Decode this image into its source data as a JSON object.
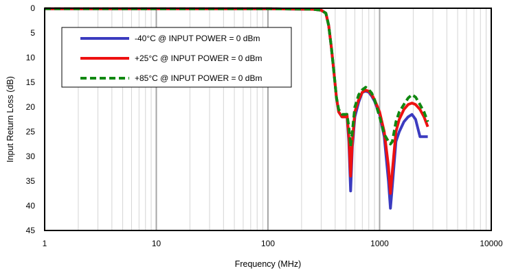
{
  "chart_data": {
    "type": "line",
    "xlabel": "Frequency (MHz)",
    "ylabel": "Input Return  Loss (dB)",
    "x_scale": "log",
    "xlim": [
      1,
      10000
    ],
    "ylim": [
      0,
      45
    ],
    "y_inverted": true,
    "x_ticks": [
      1,
      10,
      100,
      1000,
      10000
    ],
    "x_tick_labels": [
      "1",
      "10",
      "100",
      "1000",
      "10000"
    ],
    "y_ticks": [
      0,
      5,
      10,
      15,
      20,
      25,
      30,
      35,
      40,
      45
    ],
    "y_tick_labels": [
      "0",
      "5",
      "10",
      "15",
      "20",
      "25",
      "30",
      "35",
      "40",
      "45"
    ],
    "grid": true,
    "legend_position": "top-left",
    "series": [
      {
        "name": "-40°C @ INPUT POWER = 0 dBm",
        "color": "#3b3bbf",
        "dash": "solid",
        "points": [
          [
            1,
            0.1
          ],
          [
            10,
            0.1
          ],
          [
            100,
            0.1
          ],
          [
            250,
            0.2
          ],
          [
            300,
            0.4
          ],
          [
            330,
            1.0
          ],
          [
            350,
            3.5
          ],
          [
            370,
            8
          ],
          [
            390,
            13
          ],
          [
            410,
            18
          ],
          [
            430,
            21
          ],
          [
            460,
            22
          ],
          [
            490,
            22
          ],
          [
            510,
            21.5
          ],
          [
            530,
            27
          ],
          [
            550,
            37
          ],
          [
            570,
            28
          ],
          [
            600,
            22
          ],
          [
            650,
            19
          ],
          [
            700,
            17
          ],
          [
            750,
            16.8
          ],
          [
            800,
            17
          ],
          [
            850,
            17.8
          ],
          [
            900,
            18.8
          ],
          [
            1000,
            21.5
          ],
          [
            1100,
            26
          ],
          [
            1200,
            35
          ],
          [
            1250,
            40.5
          ],
          [
            1300,
            36
          ],
          [
            1400,
            27
          ],
          [
            1500,
            25
          ],
          [
            1650,
            23
          ],
          [
            1800,
            22
          ],
          [
            1950,
            21.5
          ],
          [
            2100,
            22.5
          ],
          [
            2300,
            26
          ],
          [
            2500,
            26
          ],
          [
            2700,
            26
          ]
        ]
      },
      {
        "name": "+25°C @ INPUT POWER = 0 dBm",
        "color": "#ee1111",
        "dash": "solid",
        "points": [
          [
            1,
            0.1
          ],
          [
            10,
            0.1
          ],
          [
            100,
            0.1
          ],
          [
            250,
            0.2
          ],
          [
            300,
            0.4
          ],
          [
            330,
            1.0
          ],
          [
            350,
            3.5
          ],
          [
            370,
            8
          ],
          [
            390,
            13
          ],
          [
            410,
            18
          ],
          [
            430,
            21
          ],
          [
            460,
            22
          ],
          [
            490,
            22
          ],
          [
            510,
            21.5
          ],
          [
            530,
            26
          ],
          [
            550,
            34
          ],
          [
            570,
            27
          ],
          [
            600,
            21
          ],
          [
            650,
            18.5
          ],
          [
            700,
            17
          ],
          [
            750,
            16.6
          ],
          [
            800,
            16.8
          ],
          [
            850,
            17.5
          ],
          [
            900,
            18.5
          ],
          [
            1000,
            21
          ],
          [
            1100,
            25
          ],
          [
            1200,
            32
          ],
          [
            1250,
            37.5
          ],
          [
            1300,
            33
          ],
          [
            1400,
            25
          ],
          [
            1500,
            22.5
          ],
          [
            1650,
            20.5
          ],
          [
            1800,
            19.5
          ],
          [
            1950,
            19.2
          ],
          [
            2100,
            19.5
          ],
          [
            2300,
            20.5
          ],
          [
            2500,
            22
          ],
          [
            2700,
            24
          ]
        ]
      },
      {
        "name": "+85°C @ INPUT POWER = 0 dBm",
        "color": "#118811",
        "dash": "dashed",
        "points": [
          [
            1,
            0.1
          ],
          [
            10,
            0.1
          ],
          [
            100,
            0.1
          ],
          [
            250,
            0.2
          ],
          [
            300,
            0.4
          ],
          [
            330,
            1.0
          ],
          [
            350,
            3.5
          ],
          [
            370,
            8
          ],
          [
            390,
            13
          ],
          [
            410,
            18
          ],
          [
            430,
            20.5
          ],
          [
            460,
            21.5
          ],
          [
            490,
            21.5
          ],
          [
            510,
            21.5
          ],
          [
            530,
            24
          ],
          [
            550,
            28
          ],
          [
            570,
            25
          ],
          [
            600,
            20
          ],
          [
            650,
            17.5
          ],
          [
            700,
            16.5
          ],
          [
            750,
            16
          ],
          [
            800,
            16.5
          ],
          [
            850,
            17.2
          ],
          [
            900,
            18.5
          ],
          [
            1000,
            22
          ],
          [
            1100,
            25.5
          ],
          [
            1200,
            27
          ],
          [
            1250,
            27.5
          ],
          [
            1300,
            27
          ],
          [
            1400,
            23
          ],
          [
            1500,
            21
          ],
          [
            1650,
            19.5
          ],
          [
            1800,
            18.2
          ],
          [
            1950,
            17.5
          ],
          [
            2100,
            18
          ],
          [
            2300,
            19.5
          ],
          [
            2500,
            21
          ],
          [
            2700,
            23
          ]
        ]
      }
    ]
  }
}
